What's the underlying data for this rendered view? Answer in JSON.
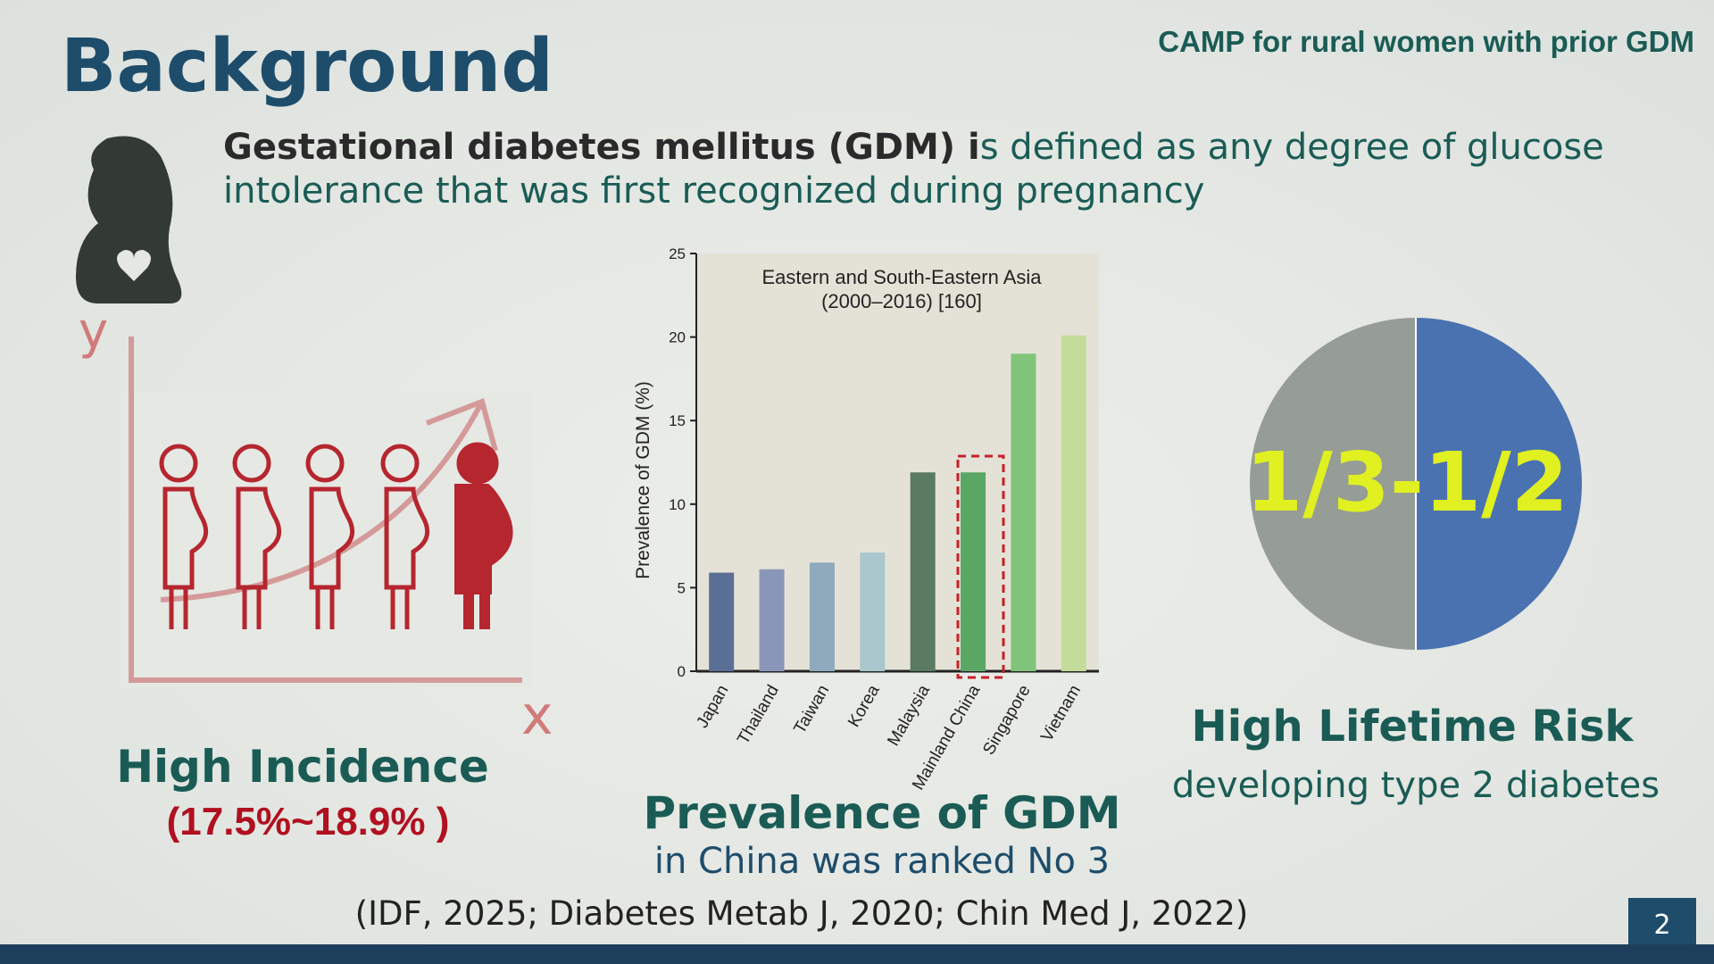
{
  "header": {
    "title": "Background",
    "subtitle": "CAMP for rural women with prior GDM"
  },
  "definition": {
    "bold": "Gestational diabetes mellitus (GDM) i",
    "rest": "s defined as any degree of glucose intolerance that was first recognized during pregnancy"
  },
  "incidence": {
    "axis_y": "y",
    "axis_x": "x",
    "title": "High Incidence",
    "range": "(17.5%~18.9% )"
  },
  "chart_data": {
    "type": "bar",
    "title": [
      "Eastern and South-Eastern Asia",
      "(2000–2016) [160]"
    ],
    "y_label": "Prevalence of GDM (%)",
    "categories": [
      "Japan",
      "Thailand",
      "Taiwan",
      "Korea",
      "Malaysia",
      "Mainland China",
      "Singapore",
      "Vietnam"
    ],
    "values": [
      5.9,
      6.1,
      6.5,
      7.1,
      11.9,
      11.9,
      19.0,
      20.1
    ],
    "colors": [
      "#5b6f95",
      "#8a96b8",
      "#8fa9bd",
      "#a9c7cc",
      "#5a7a62",
      "#5aa664",
      "#7fc47a",
      "#c4dc9a"
    ],
    "ylim": [
      0,
      25
    ],
    "yticks": [
      0,
      5,
      10,
      15,
      20,
      25
    ],
    "grid": false,
    "caption": "Prevalence of GDM",
    "caption_sub": "in China was ranked No 3"
  },
  "risk": {
    "fraction": "1/3-1/2",
    "title": "High Lifetime Risk",
    "subtitle": "developing type 2 diabetes"
  },
  "references": "(IDF, 2025;  Diabetes Metab J, 2020;   Chin Med J, 2022)",
  "page_number": "2"
}
